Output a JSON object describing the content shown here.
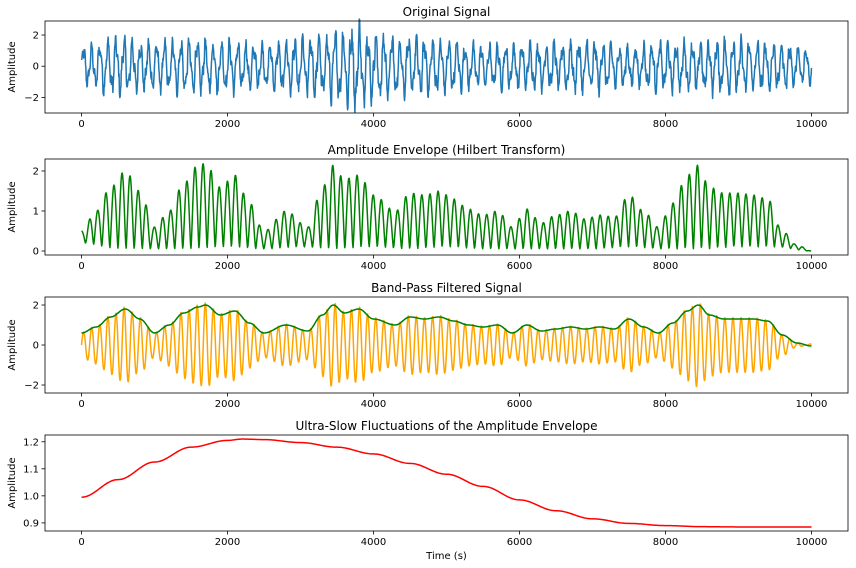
{
  "chart_data": [
    {
      "type": "line",
      "title": "Original Signal",
      "xlabel": "",
      "ylabel": "Amplitude",
      "xlim": [
        -500,
        10500
      ],
      "ylim": [
        -3.0,
        2.9
      ],
      "xticks": [
        0,
        2000,
        4000,
        6000,
        8000,
        10000
      ],
      "xtick_labels": [
        "0",
        "2000",
        "4000",
        "6000",
        "8000",
        "10000"
      ],
      "yticks": [
        -2,
        0,
        2
      ],
      "ytick_labels": [
        "−2",
        "0",
        "2"
      ],
      "grid": false,
      "series": [
        {
          "color": "#1f77b4",
          "style": "noisy oscillation",
          "x_range": [
            0,
            10000
          ],
          "amplitude_envelope": {
            "x": [
              0,
              500,
              1000,
              1500,
              2000,
              2500,
              3000,
              3500,
              3750,
              4000,
              4500,
              5000,
              5500,
              6000,
              6500,
              7000,
              7500,
              8000,
              8500,
              9000,
              9500,
              10000
            ],
            "y": [
              1.3,
              1.9,
              1.6,
              1.8,
              1.7,
              1.5,
              1.9,
              2.3,
              2.8,
              2.2,
              1.9,
              1.7,
              1.4,
              1.5,
              1.6,
              1.7,
              1.4,
              1.6,
              1.7,
              1.8,
              1.6,
              1.2
            ]
          }
        }
      ]
    },
    {
      "type": "line",
      "title": "Amplitude Envelope (Hilbert Transform)",
      "xlabel": "",
      "ylabel": "Amplitude",
      "xlim": [
        -500,
        10500
      ],
      "ylim": [
        -0.1,
        2.3
      ],
      "xticks": [
        0,
        2000,
        4000,
        6000,
        8000,
        10000
      ],
      "xtick_labels": [
        "0",
        "2000",
        "4000",
        "6000",
        "8000",
        "10000"
      ],
      "yticks": [
        0,
        1,
        2
      ],
      "ytick_labels": [
        "0",
        "1",
        "2"
      ],
      "grid": false,
      "series": [
        {
          "color": "#008000",
          "style": "oscillating envelope",
          "upper": {
            "x": [
              0,
              200,
              400,
              600,
              800,
              1000,
              1200,
              1400,
              1600,
              1700,
              1900,
              2100,
              2300,
              2500,
              2800,
              3100,
              3300,
              3450,
              3600,
              3800,
              4000,
              4300,
              4500,
              4700,
              4900,
              5100,
              5300,
              5500,
              5700,
              5900,
              6100,
              6300,
              6500,
              6700,
              6900,
              7100,
              7300,
              7500,
              7700,
              7900,
              8100,
              8300,
              8450,
              8600,
              8800,
              9000,
              9200,
              9400,
              9600,
              9800,
              10000
            ],
            "y": [
              0.5,
              1.0,
              1.6,
              2.0,
              1.5,
              0.6,
              1.0,
              1.7,
              2.15,
              2.2,
              1.6,
              1.9,
              1.2,
              0.5,
              1.0,
              0.6,
              1.6,
              2.15,
              1.8,
              1.9,
              1.4,
              1.0,
              1.45,
              1.4,
              1.5,
              1.3,
              1.05,
              0.9,
              1.0,
              0.6,
              1.05,
              0.7,
              0.9,
              1.0,
              0.8,
              0.9,
              0.85,
              1.4,
              1.0,
              0.6,
              1.2,
              1.9,
              2.15,
              1.6,
              1.45,
              1.45,
              1.4,
              1.3,
              0.5,
              0.15,
              0.0
            ]
          },
          "lower": {
            "x": [
              0,
              500,
              1000,
              1500,
              2000,
              2500,
              3000,
              3500,
              4000,
              4500,
              5000,
              5500,
              6000,
              6500,
              7000,
              7500,
              8000,
              8500,
              9000,
              9500,
              10000
            ],
            "y": [
              0.2,
              0.05,
              0.05,
              0.05,
              0.1,
              0.05,
              0.1,
              0.05,
              0.1,
              0.05,
              0.1,
              0.05,
              0.05,
              0.05,
              0.05,
              0.1,
              0.05,
              0.05,
              0.1,
              0.1,
              0.0
            ]
          }
        }
      ]
    },
    {
      "type": "line",
      "title": "Band-Pass Filtered Signal",
      "xlabel": "",
      "ylabel": "Amplitude",
      "xlim": [
        -500,
        10500
      ],
      "ylim": [
        -2.4,
        2.4
      ],
      "xticks": [
        0,
        2000,
        4000,
        6000,
        8000,
        10000
      ],
      "xtick_labels": [
        "0",
        "2000",
        "4000",
        "6000",
        "8000",
        "10000"
      ],
      "yticks": [
        -2,
        0,
        2
      ],
      "ytick_labels": [
        "−2",
        "0",
        "2"
      ],
      "grid": false,
      "series": [
        {
          "color": "#ffa500",
          "style": "band-limited oscillation",
          "x_range": [
            0,
            10000
          ]
        },
        {
          "color": "#008000",
          "style": "smooth envelope",
          "x": [
            0,
            200,
            400,
            600,
            800,
            1000,
            1200,
            1400,
            1600,
            1700,
            1900,
            2100,
            2300,
            2500,
            2800,
            3100,
            3300,
            3450,
            3600,
            3800,
            4000,
            4300,
            4500,
            4700,
            4900,
            5100,
            5300,
            5500,
            5700,
            5900,
            6100,
            6300,
            6500,
            6700,
            6900,
            7100,
            7300,
            7500,
            7700,
            7900,
            8100,
            8300,
            8450,
            8600,
            8800,
            9000,
            9200,
            9400,
            9600,
            9800,
            10000
          ],
          "y": [
            0.6,
            0.9,
            1.4,
            1.8,
            1.3,
            0.6,
            1.0,
            1.6,
            1.9,
            2.0,
            1.5,
            1.7,
            1.1,
            0.6,
            1.0,
            0.7,
            1.5,
            2.0,
            1.6,
            1.8,
            1.3,
            1.0,
            1.4,
            1.3,
            1.4,
            1.2,
            1.0,
            0.9,
            1.0,
            0.6,
            1.0,
            0.7,
            0.8,
            0.9,
            0.8,
            0.9,
            0.8,
            1.3,
            0.9,
            0.6,
            1.1,
            1.7,
            2.0,
            1.5,
            1.3,
            1.3,
            1.3,
            1.2,
            0.5,
            0.1,
            -0.05
          ]
        }
      ]
    },
    {
      "type": "line",
      "title": "Ultra-Slow Fluctuations of the Amplitude Envelope",
      "xlabel": "Time (s)",
      "ylabel": "Amplitude",
      "xlim": [
        -500,
        10500
      ],
      "ylim": [
        0.87,
        1.225
      ],
      "xticks": [
        0,
        2000,
        4000,
        6000,
        8000,
        10000
      ],
      "xtick_labels": [
        "0",
        "2000",
        "4000",
        "6000",
        "8000",
        "10000"
      ],
      "yticks": [
        0.9,
        1.0,
        1.1,
        1.2
      ],
      "ytick_labels": [
        "0.9",
        "1.0",
        "1.1",
        "1.2"
      ],
      "grid": false,
      "series": [
        {
          "color": "#ff0000",
          "style": "smooth curve",
          "x": [
            0,
            500,
            1000,
            1500,
            2000,
            2200,
            2500,
            3000,
            3500,
            4000,
            4500,
            5000,
            5500,
            6000,
            6500,
            7000,
            7500,
            8000,
            8500,
            9000,
            9500,
            10000
          ],
          "y": [
            0.995,
            1.06,
            1.125,
            1.18,
            1.205,
            1.21,
            1.208,
            1.197,
            1.18,
            1.155,
            1.12,
            1.08,
            1.035,
            0.985,
            0.945,
            0.915,
            0.898,
            0.89,
            0.886,
            0.885,
            0.885,
            0.885
          ]
        }
      ]
    }
  ]
}
